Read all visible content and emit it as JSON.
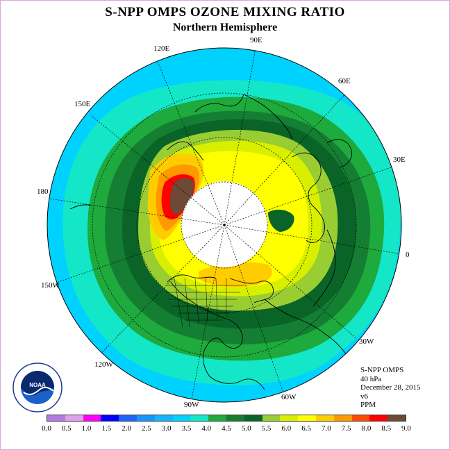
{
  "title": "S-NPP OMPS OZONE MIXING RATIO",
  "subtitle": "Northern Hemisphere",
  "longitude_labels": {
    "e120": "120E",
    "e90": "90E",
    "e60": "60E",
    "e150": "150E",
    "e30": "30E",
    "l180": "180",
    "l0": "0",
    "w150": "150W",
    "w30": "30W",
    "w120": "120W",
    "w60": "60W",
    "w90": "90W"
  },
  "info": {
    "instrument": "S-NPP OMPS",
    "level": "40 hPa",
    "date": "December 28, 2015",
    "version": "v6",
    "units": "PPM"
  },
  "logo_text": "NOAA",
  "logo_ring_text": "NATIONAL OCEANIC AND ATMOSPHERIC ADMINISTRATION",
  "logo_ring_text_bottom": "U.S. DEPARTMENT OF COMMERCE",
  "colorbar": {
    "ticks": [
      "0.0",
      "0.5",
      "1.0",
      "1.5",
      "2.0",
      "2.5",
      "3.0",
      "3.5",
      "4.0",
      "4.5",
      "5.0",
      "5.5",
      "6.0",
      "6.5",
      "7.0",
      "7.5",
      "8.0",
      "8.5",
      "9.0"
    ],
    "colors": [
      "#b37ae0",
      "#e0a0ec",
      "#ff00ff",
      "#0000ff",
      "#1e64ff",
      "#1496ff",
      "#14b4ff",
      "#00d2ff",
      "#14e6c8",
      "#1eaa3c",
      "#147f32",
      "#0a6428",
      "#9acd32",
      "#d8f000",
      "#ffff00",
      "#ffcc00",
      "#ff9900",
      "#ff4a00",
      "#ff0000",
      "#6e4a36"
    ]
  },
  "map_colors": {
    "background": "#ffffff",
    "outer": "#00d2ff",
    "teal": "#14e6c8",
    "green1": "#1eaa3c",
    "green2": "#147f32",
    "green3": "#0a6428",
    "ygreen": "#9acd32",
    "yel1": "#d8f000",
    "yel2": "#ffff00",
    "orange": "#ffcc00",
    "orange2": "#ff9900",
    "red": "#ff0000",
    "brown": "#6e4a36",
    "polar": "#ffffff"
  }
}
